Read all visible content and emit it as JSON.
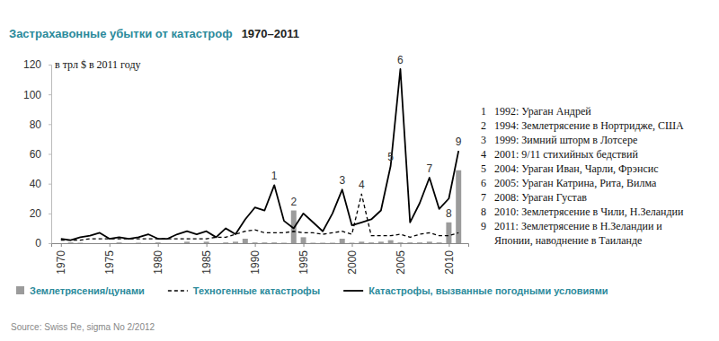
{
  "chart_data": {
    "type": "line",
    "title": "Застрахавонные убытки от катастроф",
    "subtitle": "1970–2011",
    "y_label": "в трл $ в 2011 году",
    "source": "Source: Swiss Re, sigma No 2/2012",
    "x": [
      1970,
      1971,
      1972,
      1973,
      1974,
      1975,
      1976,
      1977,
      1978,
      1979,
      1980,
      1981,
      1982,
      1983,
      1984,
      1985,
      1986,
      1987,
      1988,
      1989,
      1990,
      1991,
      1992,
      1993,
      1994,
      1995,
      1996,
      1997,
      1998,
      1999,
      2000,
      2001,
      2002,
      2003,
      2004,
      2005,
      2006,
      2007,
      2008,
      2009,
      2010,
      2011
    ],
    "series": [
      {
        "name": "Землетрясения/цунами",
        "type": "bar",
        "color": "#9b9b9b",
        "values": [
          0,
          0.5,
          0.3,
          0,
          0,
          0,
          0.5,
          0,
          0.3,
          0,
          0.5,
          0,
          0,
          1,
          0,
          1,
          0,
          0.5,
          1,
          3,
          0.5,
          0.5,
          0.5,
          0.3,
          22,
          4,
          0.3,
          0.3,
          0.3,
          3,
          0.3,
          1,
          0.5,
          1,
          2,
          0.5,
          0.5,
          0.5,
          1,
          0.5,
          14,
          49
        ]
      },
      {
        "name": "Техногенные катастрофы",
        "type": "line",
        "color": "#000000",
        "line_style": "dashed",
        "values": [
          2,
          2,
          2,
          3,
          3,
          3,
          3,
          3,
          3,
          3,
          3,
          3,
          3,
          3,
          3,
          3,
          4,
          4,
          6,
          8,
          9,
          7,
          7,
          7,
          8,
          7,
          7,
          6,
          7,
          8,
          6,
          33,
          5,
          5,
          5,
          6,
          4,
          6,
          7,
          5,
          5,
          7
        ]
      },
      {
        "name": "Катастрофы, вызванные погодными условиями",
        "type": "line",
        "color": "#000000",
        "line_style": "solid",
        "values": [
          3,
          2,
          4,
          5,
          7,
          3,
          4,
          3,
          4,
          6,
          3,
          3,
          6,
          8,
          6,
          8,
          4,
          10,
          6,
          16,
          24,
          22,
          39,
          15,
          10,
          20,
          14,
          8,
          20,
          36,
          12,
          14,
          16,
          22,
          52,
          117,
          14,
          27,
          44,
          23,
          30,
          62
        ]
      }
    ],
    "xlim": [
      1969,
      2012
    ],
    "xticks": [
      1970,
      1975,
      1980,
      1985,
      1990,
      1995,
      2000,
      2005,
      2010
    ],
    "ylim": [
      0,
      120
    ],
    "yticks": [
      0,
      20,
      40,
      60,
      80,
      100,
      120
    ],
    "grid": false,
    "legend": "bottom",
    "annotations": [
      {
        "label": "1",
        "x": 1992,
        "series": 2,
        "text": "1992: Ураган Андрей"
      },
      {
        "label": "2",
        "x": 1994,
        "series": 0,
        "text": "1994: Землетрясение в Нортридже, США"
      },
      {
        "label": "3",
        "x": 1999,
        "series": 2,
        "text": "1999: Зимний шторм в Лотсере"
      },
      {
        "label": "4",
        "x": 2001,
        "series": 1,
        "text": "2001: 9/11 стихийных бедствий"
      },
      {
        "label": "5",
        "x": 2004,
        "series": 2,
        "text": "2004: Ураган Иван, Чарли, Фрэнсис"
      },
      {
        "label": "6",
        "x": 2005,
        "series": 2,
        "text": "2005: Ураган Катрина, Рита, Вилма"
      },
      {
        "label": "7",
        "x": 2008,
        "series": 2,
        "text": "2008: Ураган Густав"
      },
      {
        "label": "8",
        "x": 2010,
        "series": 0,
        "text": "2010: Землетрясение в Чили, Н.Зеландии"
      },
      {
        "label": "9",
        "x": 2011,
        "series": 2,
        "text": "2011: Землетрясение в Н.Зеландии и\nЯпонии, наводнение в Таиланде"
      }
    ]
  }
}
